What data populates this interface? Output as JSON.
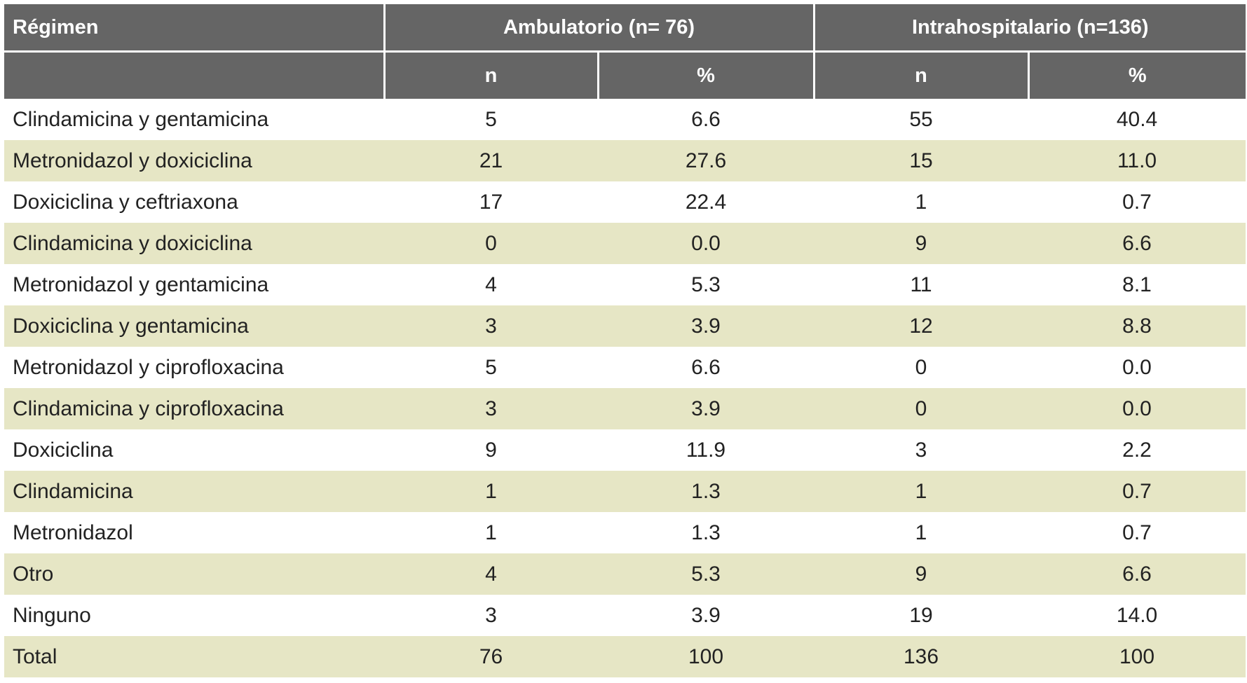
{
  "table": {
    "header": {
      "title": "Régimen",
      "groups": [
        "Ambulatorio (n= 76)",
        "Intrahospitalario (n=136)"
      ],
      "subheaders": [
        "n",
        "%",
        "n",
        "%"
      ]
    },
    "rows": [
      [
        "Clindamicina y gentamicina",
        "5",
        "6.6",
        "55",
        "40.4"
      ],
      [
        "Metronidazol y doxiciclina",
        "21",
        "27.6",
        "15",
        "11.0"
      ],
      [
        "Doxiciclina y ceftriaxona",
        "17",
        "22.4",
        "1",
        "0.7"
      ],
      [
        "Clindamicina y doxiciclina",
        "0",
        "0.0",
        "9",
        "6.6"
      ],
      [
        "Metronidazol y gentamicina",
        "4",
        "5.3",
        "11",
        "8.1"
      ],
      [
        "Doxiciclina y gentamicina",
        "3",
        "3.9",
        "12",
        "8.8"
      ],
      [
        "Metronidazol y ciprofloxacina",
        "5",
        "6.6",
        "0",
        "0.0"
      ],
      [
        "Clindamicina y ciprofloxacina",
        "3",
        "3.9",
        "0",
        "0.0"
      ],
      [
        "Doxiciclina",
        "9",
        "11.9",
        "3",
        "2.2"
      ],
      [
        "Clindamicina",
        "1",
        "1.3",
        "1",
        "0.7"
      ],
      [
        "Metronidazol",
        "1",
        "1.3",
        "1",
        "0.7"
      ],
      [
        "Otro",
        "4",
        "5.3",
        "9",
        "6.6"
      ],
      [
        "Ninguno",
        "3",
        "3.9",
        "19",
        "14.0"
      ],
      [
        "Total",
        "76",
        "100",
        "136",
        "100"
      ]
    ]
  }
}
